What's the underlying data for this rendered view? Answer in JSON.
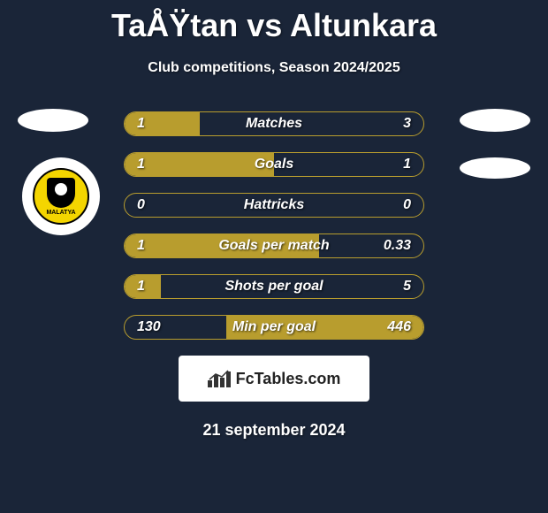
{
  "title": "TaÅŸtan vs Altunkara",
  "subtitle": "Club competitions, Season 2024/2025",
  "date": "21 september 2024",
  "branding": {
    "text": "FcTables.com"
  },
  "team_left_badge": {
    "label": "MALATYA"
  },
  "stats": {
    "bar_border_color": "#b89d2e",
    "bar_fill_color": "#b89d2e",
    "rows": [
      {
        "label": "Matches",
        "left_val": "1",
        "right_val": "3",
        "left_pct": 25,
        "right_pct": 0
      },
      {
        "label": "Goals",
        "left_val": "1",
        "right_val": "1",
        "left_pct": 50,
        "right_pct": 0
      },
      {
        "label": "Hattricks",
        "left_val": "0",
        "right_val": "0",
        "left_pct": 0,
        "right_pct": 0
      },
      {
        "label": "Goals per match",
        "left_val": "1",
        "right_val": "0.33",
        "left_pct": 65,
        "right_pct": 0
      },
      {
        "label": "Shots per goal",
        "left_val": "1",
        "right_val": "5",
        "left_pct": 12,
        "right_pct": 0
      },
      {
        "label": "Min per goal",
        "left_val": "130",
        "right_val": "446",
        "left_pct": 0,
        "right_pct": 66
      }
    ]
  }
}
